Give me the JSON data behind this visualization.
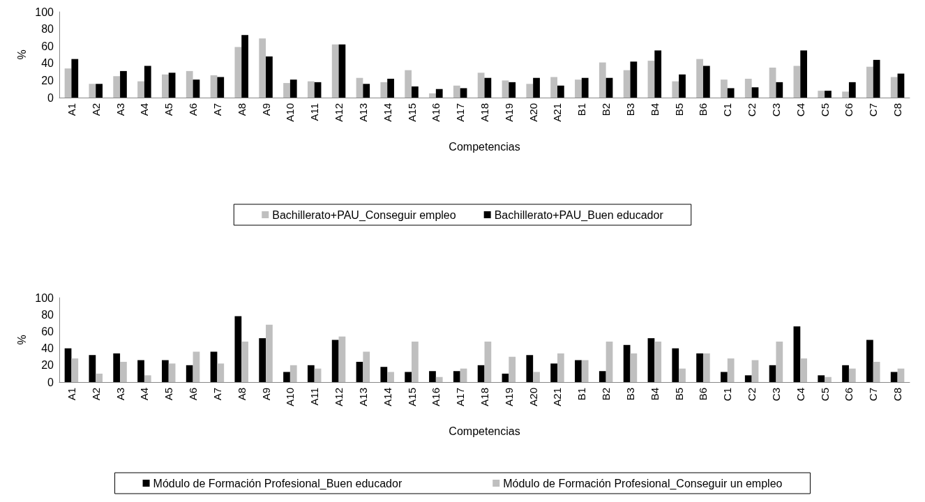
{
  "chart_data": [
    {
      "type": "bar",
      "xlabel": "Competencias",
      "ylabel": "%",
      "categories": [
        "A1",
        "A2",
        "A3",
        "A4",
        "A5",
        "A6",
        "A7",
        "A8",
        "A9",
        "A10",
        "A11",
        "A12",
        "A13",
        "A14",
        "A15",
        "A16",
        "A17",
        "A18",
        "A19",
        "A20",
        "A21",
        "B1",
        "B2",
        "B3",
        "B4",
        "B5",
        "B6",
        "C1",
        "C2",
        "C3",
        "C4",
        "C5",
        "C6",
        "C7",
        "C8"
      ],
      "series": [
        {
          "name": "Bachillerato+PAU_Conseguir empleo",
          "color": "#bfbfbf",
          "values": [
            34,
            16,
            25,
            19,
            27,
            31,
            26,
            59,
            69,
            17,
            19,
            62,
            23,
            18,
            32,
            5,
            14,
            29,
            20,
            16,
            24,
            21,
            41,
            32,
            43,
            19,
            45,
            21,
            22,
            35,
            37,
            8,
            7,
            36,
            24
          ]
        },
        {
          "name": "Bachillerato+PAU_Buen educador",
          "color": "#000000",
          "values": [
            45,
            16,
            31,
            37,
            29,
            21,
            24,
            73,
            48,
            21,
            18,
            62,
            16,
            22,
            13,
            10,
            11,
            23,
            18,
            23,
            14,
            23,
            23,
            42,
            55,
            27,
            37,
            11,
            12,
            18,
            55,
            8,
            18,
            44,
            28
          ]
        }
      ],
      "ylim": [
        0,
        100
      ],
      "yticks": [
        0,
        20,
        40,
        60,
        80,
        100
      ],
      "grid": false,
      "legend": "bottom"
    },
    {
      "type": "bar",
      "xlabel": "Competencias",
      "ylabel": "%",
      "categories": [
        "A1",
        "A2",
        "A3",
        "A4",
        "A5",
        "A6",
        "A7",
        "A8",
        "A9",
        "A10",
        "A11",
        "A12",
        "A13",
        "A14",
        "A15",
        "A16",
        "A17",
        "A18",
        "A19",
        "A20",
        "A21",
        "B1",
        "B2",
        "B3",
        "B4",
        "B5",
        "B6",
        "C1",
        "C2",
        "C3",
        "C4",
        "C5",
        "C6",
        "C7",
        "C8"
      ],
      "series": [
        {
          "name": "Módulo de Formación Profesional_Buen educador",
          "color": "#000000",
          "values": [
            40,
            32,
            34,
            26,
            26,
            20,
            36,
            78,
            52,
            12,
            20,
            50,
            24,
            18,
            12,
            13,
            13,
            20,
            10,
            32,
            22,
            26,
            13,
            44,
            52,
            40,
            34,
            12,
            8,
            20,
            66,
            8,
            20,
            50,
            12
          ]
        },
        {
          "name": "Módulo de Formación Profesional_Conseguir un empleo",
          "color": "#bfbfbf",
          "values": [
            28,
            10,
            24,
            8,
            22,
            36,
            22,
            48,
            68,
            20,
            16,
            54,
            36,
            12,
            48,
            6,
            16,
            48,
            30,
            12,
            34,
            26,
            48,
            34,
            48,
            16,
            34,
            28,
            26,
            48,
            28,
            6,
            16,
            24,
            16
          ]
        }
      ],
      "ylim": [
        0,
        100
      ],
      "yticks": [
        0,
        20,
        40,
        60,
        80,
        100
      ],
      "grid": false,
      "legend": "bottom"
    }
  ]
}
